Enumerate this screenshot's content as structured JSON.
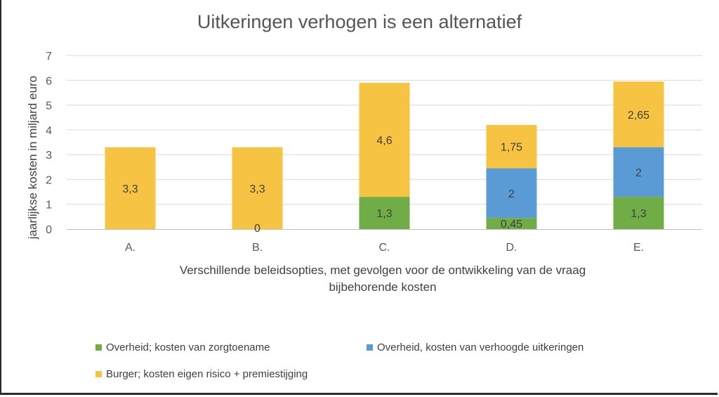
{
  "chart_data": {
    "type": "bar",
    "stacked": true,
    "title": "Uitkeringen verhogen is een alternatief",
    "ylabel": "jaarlijkse kosten in miljard euro",
    "xlabel_lines": [
      "Verschillende beleidsopties, met gevolgen voor de ontwikkeling van de vraag",
      "bijbehorende  kosten"
    ],
    "ylim": [
      0,
      7
    ],
    "yticks": [
      "0",
      "1",
      "2",
      "3",
      "4",
      "5",
      "6",
      "7"
    ],
    "grid": true,
    "legend_position": "bottom",
    "categories": [
      "A.",
      "B.",
      "C.",
      "D.",
      "E."
    ],
    "series": [
      {
        "name": "Overheid; kosten van zorgtoename",
        "color": "#70ad47",
        "values": [
          0,
          0,
          1.3,
          0.45,
          1.3
        ],
        "labels": [
          "",
          "0",
          "1,3",
          "0,45",
          "1,3"
        ]
      },
      {
        "name": "Overheid, kosten van verhoogde uitkeringen",
        "color": "#5b9bd5",
        "values": [
          0,
          0,
          0,
          2,
          2
        ],
        "labels": [
          "",
          "",
          "",
          "2",
          "2"
        ]
      },
      {
        "name": "Burger; kosten eigen risico + premiestijging",
        "color": "#f6c342",
        "values": [
          3.3,
          3.3,
          4.6,
          1.75,
          2.65
        ],
        "labels": [
          "3,3",
          "3,3",
          "4,6",
          "1,75",
          "2,65"
        ]
      }
    ]
  }
}
